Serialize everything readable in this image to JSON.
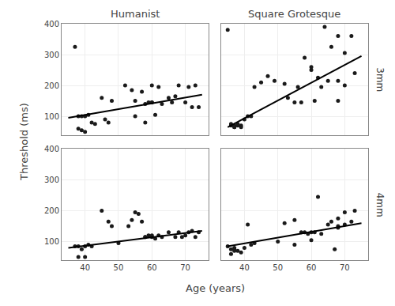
{
  "chart_data": [
    {
      "type": "scatter",
      "title": "Humanist",
      "xlim": [
        33,
        77
      ],
      "xticks": [
        40,
        50,
        60,
        70
      ],
      "ylim": [
        40,
        400
      ],
      "yticks": [
        100,
        200,
        300,
        400
      ],
      "grid": true,
      "tick_labels": "y",
      "series": [
        {
          "type": "scatter",
          "color": "#1a1a1a",
          "x": [
            37,
            38,
            38,
            39,
            39,
            40,
            40,
            41,
            42,
            43,
            45,
            46,
            47,
            48,
            52,
            54,
            55,
            55,
            57,
            58,
            58,
            59,
            60,
            60,
            60,
            61,
            62,
            63,
            65,
            66,
            67,
            68,
            70,
            71,
            72,
            73,
            74
          ],
          "values": [
            325,
            100,
            60,
            100,
            55,
            100,
            50,
            105,
            80,
            75,
            160,
            90,
            80,
            150,
            200,
            185,
            150,
            100,
            180,
            140,
            80,
            145,
            145,
            145,
            200,
            105,
            195,
            140,
            160,
            145,
            165,
            200,
            145,
            195,
            130,
            200,
            130
          ]
        },
        {
          "type": "line",
          "color": "#000000",
          "x": [
            35,
            75
          ],
          "values": [
            95,
            170
          ]
        }
      ]
    },
    {
      "type": "scatter",
      "title": "Square Grotesque",
      "annotations": [
        "3mm"
      ],
      "xlim": [
        33,
        77
      ],
      "xticks": [
        40,
        50,
        60,
        70
      ],
      "ylim": [
        40,
        400
      ],
      "yticks": [
        100,
        200,
        300,
        400
      ],
      "grid": true,
      "tick_labels": false,
      "series": [
        {
          "type": "scatter",
          "color": "#1a1a1a",
          "x": [
            35,
            36,
            36,
            37,
            37,
            37,
            38,
            38,
            39,
            39,
            40,
            41,
            42,
            43,
            45,
            47,
            49,
            52,
            53,
            55,
            56,
            57,
            58,
            60,
            60,
            61,
            62,
            63,
            64,
            65,
            66,
            68,
            68,
            68,
            70,
            70,
            72,
            73
          ],
          "values": [
            380,
            75,
            70,
            70,
            65,
            65,
            75,
            70,
            70,
            65,
            90,
            100,
            100,
            195,
            210,
            230,
            215,
            205,
            160,
            145,
            195,
            145,
            290,
            260,
            250,
            150,
            225,
            195,
            390,
            215,
            325,
            360,
            215,
            150,
            305,
            200,
            360,
            240
          ]
        },
        {
          "type": "line",
          "color": "#000000",
          "x": [
            35,
            75
          ],
          "values": [
            65,
            295
          ]
        }
      ]
    },
    {
      "type": "scatter",
      "xlabel": "Age (years)",
      "ylabel": "Threshold (ms)",
      "xlim": [
        33,
        77
      ],
      "xticks": [
        40,
        50,
        60,
        70
      ],
      "ylim": [
        40,
        400
      ],
      "yticks": [
        100,
        200,
        300,
        400
      ],
      "grid": true,
      "series": [
        {
          "type": "scatter",
          "color": "#1a1a1a",
          "x": [
            37,
            38,
            38,
            39,
            40,
            40,
            41,
            42,
            45,
            47,
            48,
            50,
            53,
            54,
            55,
            56,
            57,
            58,
            58,
            59,
            60,
            60,
            61,
            62,
            63,
            65,
            67,
            68,
            69,
            70,
            71,
            72,
            73,
            74
          ],
          "values": [
            85,
            85,
            50,
            75,
            85,
            50,
            90,
            85,
            200,
            165,
            150,
            95,
            150,
            170,
            195,
            190,
            165,
            115,
            115,
            120,
            115,
            120,
            110,
            120,
            115,
            130,
            115,
            130,
            115,
            120,
            130,
            135,
            115,
            130
          ]
        },
        {
          "type": "line",
          "color": "#000000",
          "x": [
            35,
            75
          ],
          "values": [
            80,
            135
          ]
        }
      ]
    },
    {
      "type": "scatter",
      "annotations": [
        "4mm"
      ],
      "xlim": [
        33,
        77
      ],
      "xticks": [
        40,
        50,
        60,
        70
      ],
      "ylim": [
        40,
        400
      ],
      "yticks": [
        100,
        200,
        300,
        400
      ],
      "grid": true,
      "tick_labels": "x",
      "series": [
        {
          "type": "scatter",
          "color": "#1a1a1a",
          "x": [
            35,
            36,
            36,
            37,
            37,
            37,
            38,
            39,
            40,
            41,
            42,
            43,
            50,
            52,
            55,
            55,
            57,
            58,
            59,
            60,
            60,
            61,
            62,
            63,
            65,
            66,
            67,
            68,
            68,
            68,
            70,
            70,
            72,
            73
          ],
          "values": [
            85,
            75,
            60,
            80,
            75,
            70,
            70,
            65,
            80,
            155,
            90,
            95,
            100,
            160,
            170,
            90,
            130,
            130,
            125,
            105,
            130,
            130,
            245,
            125,
            155,
            165,
            75,
            150,
            145,
            175,
            155,
            195,
            165,
            200
          ]
        },
        {
          "type": "line",
          "color": "#000000",
          "x": [
            35,
            75
          ],
          "values": [
            85,
            160
          ]
        }
      ]
    }
  ]
}
